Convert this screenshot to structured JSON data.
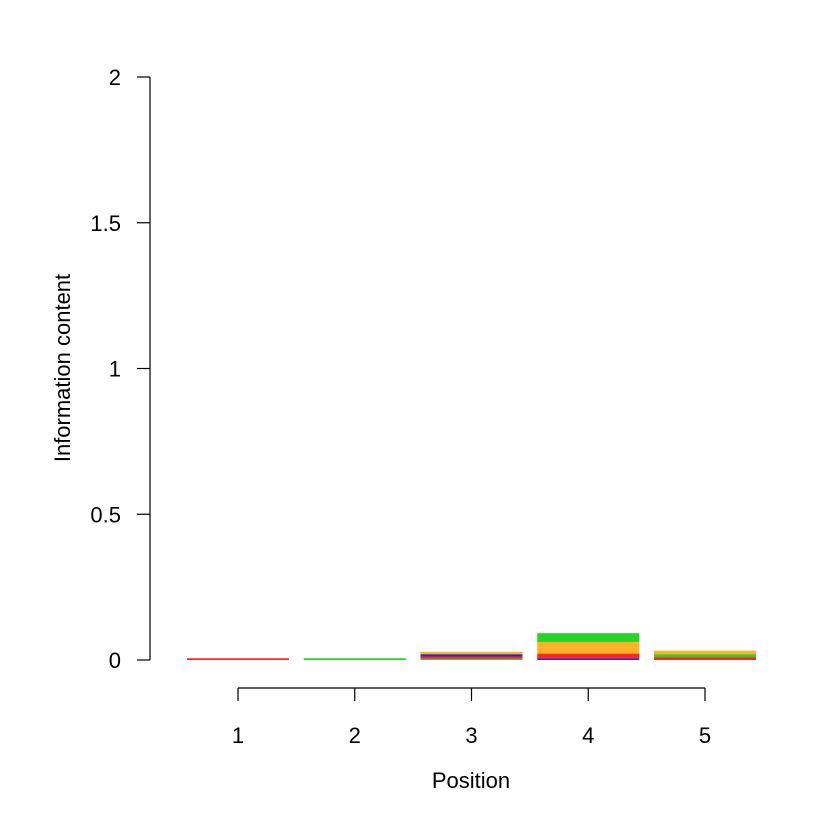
{
  "chart_data": {
    "type": "sequence-logo",
    "xlabel": "Position",
    "ylabel": "Information content",
    "ylim": [
      0,
      2
    ],
    "y_ticks": [
      "0",
      "0.5",
      "1",
      "1.5",
      "2"
    ],
    "x_ticks": [
      "1",
      "2",
      "3",
      "4",
      "5"
    ],
    "colors": {
      "A": "#00cc00",
      "C": "#0000cc",
      "G": "#ffa500",
      "T": "#ff0000",
      "N": "#000000"
    },
    "positions": [
      {
        "x": 1,
        "letters": [
          {
            "base": "T",
            "height": 0.006
          }
        ]
      },
      {
        "x": 2,
        "letters": [
          {
            "base": "A",
            "height": 0.006
          }
        ]
      },
      {
        "x": 3,
        "letters": [
          {
            "base": "A",
            "height": 0.004
          },
          {
            "base": "T",
            "height": 0.008
          },
          {
            "base": "C",
            "height": 0.008
          },
          {
            "base": "G",
            "height": 0.008
          }
        ]
      },
      {
        "x": 4,
        "letters": [
          {
            "base": "C",
            "height": 0.006
          },
          {
            "base": "T",
            "height": 0.016
          },
          {
            "base": "G",
            "height": 0.02
          },
          {
            "base": "G",
            "height": 0.02
          },
          {
            "base": "A",
            "height": 0.03
          }
        ]
      },
      {
        "x": 5,
        "letters": [
          {
            "base": "T",
            "height": 0.01
          },
          {
            "base": "A",
            "height": 0.01
          },
          {
            "base": "G",
            "height": 0.012
          }
        ]
      }
    ]
  }
}
